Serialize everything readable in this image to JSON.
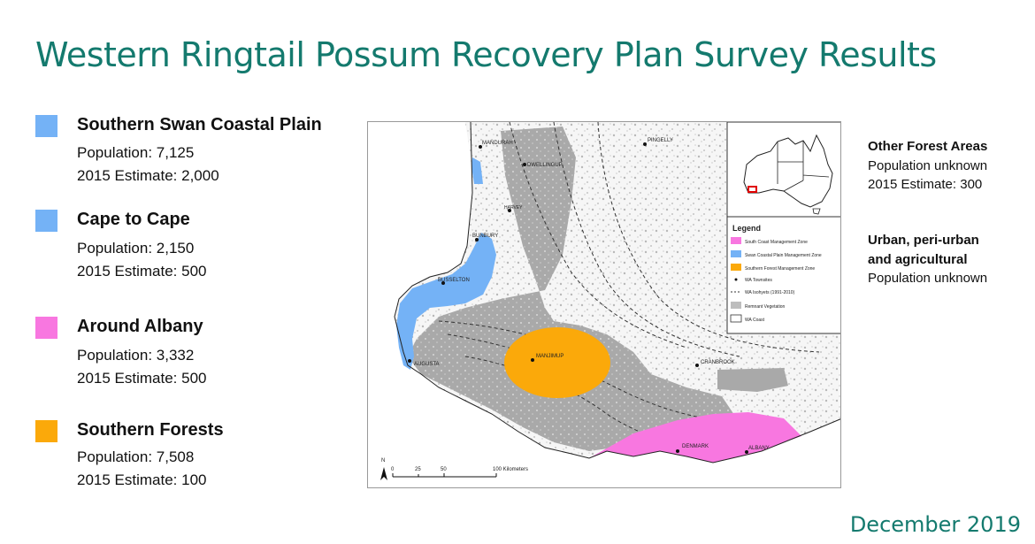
{
  "title": "Western Ringtail Possum Recovery Plan Survey Results",
  "regions": [
    {
      "name": "Southern Swan Coastal Plain",
      "population": "Population: 7,125",
      "estimate": "2015 Estimate: 2,000",
      "color": "#74b2f6"
    },
    {
      "name": "Cape to Cape",
      "population": "Population: 2,150",
      "estimate": "2015 Estimate: 500",
      "color": "#74b2f6"
    },
    {
      "name": "Around Albany",
      "population": "Population: 3,332",
      "estimate": "2015 Estimate: 500",
      "color": "#f877e0"
    },
    {
      "name": "Southern Forests",
      "population": "Population: 7,508",
      "estimate": "2015 Estimate: 100",
      "color": "#fba90a"
    }
  ],
  "side_notes": [
    {
      "head": "Other Forest Areas",
      "lines": [
        "Population unknown",
        "2015 Estimate: 300"
      ]
    },
    {
      "head_lines": [
        "Urban, peri-urban",
        "and agricultural"
      ],
      "lines": [
        "Population unknown"
      ]
    }
  ],
  "map": {
    "legend": {
      "title": "Legend",
      "items": [
        {
          "label": "South Coast Management Zone",
          "color": "#f877e0"
        },
        {
          "label": "Swan Coastal Plain Management Zone",
          "color": "#74b2f6"
        },
        {
          "label": "Southern Forest Management Zone",
          "color": "#fba90a"
        },
        {
          "label": "WA Townsites"
        },
        {
          "label": "WA Isohyets (1991-2010)"
        },
        {
          "label": "Remnant Vegetation",
          "color": "#bdbdbd"
        },
        {
          "label": "WA Coast"
        }
      ]
    },
    "towns": [
      "PINGELLY",
      "MANDURAH",
      "BUNBURY",
      "BUSSELTON",
      "AUGUSTA",
      "MANJIMUP",
      "CRANBROOK",
      "DENMARK",
      "ALBANY",
      "DWELLINGUP",
      "HARVEY"
    ],
    "scale": {
      "ticks": [
        "0",
        "25",
        "50",
        "100 Kilometers"
      ],
      "north": "N"
    }
  },
  "footer_date": "December 2019"
}
